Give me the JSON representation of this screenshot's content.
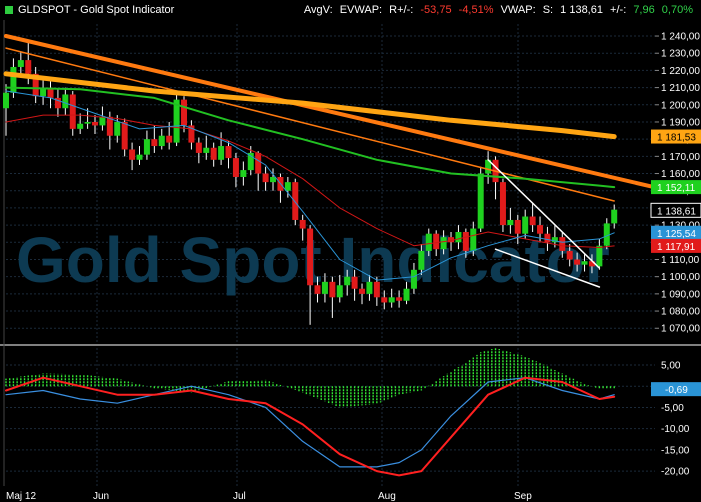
{
  "header": {
    "title": "GLDSPOT - Gold Spot Indicator",
    "avgv": "AvgV:",
    "evwap": "EVWAP:",
    "rpm_label": "R+/-:",
    "rpm_value": "-53,75",
    "rpm_pct": "-4,51%",
    "vwap": "VWAP:",
    "s_label": "S:",
    "s_value": "1 138,61",
    "pm_label": "+/-:",
    "pm_value": "7,96",
    "pm_pct": "0,70%"
  },
  "watermark": "Gold Spot Indicator",
  "colors": {
    "up": "#1fd11f",
    "down": "#e11b1b",
    "ma_green": "#22c022",
    "ma_red": "#d01616",
    "ma_blue": "#2a94d6",
    "trend_orange": "#ff7a10",
    "trend_gold": "#ffa513",
    "white_line": "#ffffff",
    "macd": "#ff2020",
    "signal": "#3a8fe0",
    "hist": "#33e633"
  },
  "chart_data": [
    {
      "type": "candlestick",
      "title": "GLDSPOT - Gold Spot Indicator",
      "xlabel": "",
      "ylabel": "",
      "x_ticks": [
        "Maj 12",
        "Jun",
        "Jul",
        "Aug",
        "Sep"
      ],
      "y_ticks": [
        1070,
        1080,
        1090,
        1100,
        1110,
        1120,
        1130,
        1140,
        1150,
        1160,
        1170,
        1180,
        1190,
        1200,
        1210,
        1220,
        1230,
        1240
      ],
      "y_tick_labels": [
        "1 070,00",
        "1 080,00",
        "1 090,00",
        "1 100,00",
        "1 110,00",
        "1 120,00",
        "1 130,00",
        "1 140,00",
        "1 150,00",
        "1 160,00",
        "1 170,00",
        "1 180,00",
        "1 190,00",
        "1 200,00",
        "1 210,00",
        "1 220,00",
        "1 230,00",
        "1 240,00"
      ],
      "ylim": [
        1062,
        1247
      ],
      "grid": true,
      "value_labels": [
        {
          "text": "1 181,53",
          "value": 1181.53,
          "color": "#ffa513"
        },
        {
          "text": "1 152,11",
          "value": 1152.11,
          "color": "#1fd11f"
        },
        {
          "text": "1 138,61",
          "value": 1138.61,
          "color": "#ffffff"
        },
        {
          "text": "1 125,54",
          "value": 1125.54,
          "color": "#2a94d6"
        },
        {
          "text": "1 117,91",
          "value": 1117.91,
          "color": "#e11b1b"
        }
      ],
      "candles": [
        {
          "d": 0,
          "o": 1198,
          "c": 1207,
          "h": 1212,
          "l": 1182
        },
        {
          "d": 2,
          "o": 1207,
          "c": 1222,
          "h": 1227,
          "l": 1204
        },
        {
          "d": 4,
          "o": 1222,
          "c": 1226,
          "h": 1231,
          "l": 1216
        },
        {
          "d": 6,
          "o": 1226,
          "c": 1218,
          "h": 1237,
          "l": 1212
        },
        {
          "d": 8,
          "o": 1218,
          "c": 1205,
          "h": 1222,
          "l": 1201
        },
        {
          "d": 10,
          "o": 1205,
          "c": 1210,
          "h": 1216,
          "l": 1200
        },
        {
          "d": 12,
          "o": 1210,
          "c": 1204,
          "h": 1214,
          "l": 1198
        },
        {
          "d": 14,
          "o": 1204,
          "c": 1198,
          "h": 1209,
          "l": 1193
        },
        {
          "d": 16,
          "o": 1198,
          "c": 1206,
          "h": 1210,
          "l": 1194
        },
        {
          "d": 18,
          "o": 1206,
          "c": 1186,
          "h": 1208,
          "l": 1182
        },
        {
          "d": 20,
          "o": 1186,
          "c": 1189,
          "h": 1195,
          "l": 1183
        },
        {
          "d": 22,
          "o": 1189,
          "c": 1190,
          "h": 1198,
          "l": 1186
        },
        {
          "d": 24,
          "o": 1190,
          "c": 1188,
          "h": 1194,
          "l": 1183
        },
        {
          "d": 26,
          "o": 1188,
          "c": 1193,
          "h": 1199,
          "l": 1185
        },
        {
          "d": 28,
          "o": 1193,
          "c": 1182,
          "h": 1196,
          "l": 1174
        },
        {
          "d": 30,
          "o": 1182,
          "c": 1190,
          "h": 1194,
          "l": 1178
        },
        {
          "d": 32,
          "o": 1190,
          "c": 1174,
          "h": 1192,
          "l": 1170
        },
        {
          "d": 34,
          "o": 1174,
          "c": 1168,
          "h": 1178,
          "l": 1162
        },
        {
          "d": 36,
          "o": 1168,
          "c": 1171,
          "h": 1176,
          "l": 1165
        },
        {
          "d": 38,
          "o": 1171,
          "c": 1180,
          "h": 1185,
          "l": 1168
        },
        {
          "d": 40,
          "o": 1180,
          "c": 1176,
          "h": 1188,
          "l": 1172
        },
        {
          "d": 42,
          "o": 1176,
          "c": 1182,
          "h": 1186,
          "l": 1174
        },
        {
          "d": 44,
          "o": 1182,
          "c": 1178,
          "h": 1190,
          "l": 1174
        },
        {
          "d": 46,
          "o": 1178,
          "c": 1203,
          "h": 1206,
          "l": 1176
        },
        {
          "d": 48,
          "o": 1203,
          "c": 1188,
          "h": 1205,
          "l": 1184
        },
        {
          "d": 50,
          "o": 1188,
          "c": 1178,
          "h": 1191,
          "l": 1174
        },
        {
          "d": 52,
          "o": 1178,
          "c": 1172,
          "h": 1181,
          "l": 1166
        },
        {
          "d": 54,
          "o": 1172,
          "c": 1175,
          "h": 1182,
          "l": 1168
        },
        {
          "d": 56,
          "o": 1175,
          "c": 1168,
          "h": 1178,
          "l": 1164
        },
        {
          "d": 58,
          "o": 1168,
          "c": 1176,
          "h": 1184,
          "l": 1165
        },
        {
          "d": 60,
          "o": 1176,
          "c": 1169,
          "h": 1179,
          "l": 1163
        },
        {
          "d": 62,
          "o": 1169,
          "c": 1158,
          "h": 1172,
          "l": 1152
        },
        {
          "d": 64,
          "o": 1158,
          "c": 1162,
          "h": 1167,
          "l": 1153
        },
        {
          "d": 66,
          "o": 1162,
          "c": 1172,
          "h": 1176,
          "l": 1159
        },
        {
          "d": 68,
          "o": 1172,
          "c": 1160,
          "h": 1173,
          "l": 1150
        },
        {
          "d": 70,
          "o": 1160,
          "c": 1155,
          "h": 1164,
          "l": 1150
        },
        {
          "d": 72,
          "o": 1155,
          "c": 1158,
          "h": 1163,
          "l": 1150
        },
        {
          "d": 74,
          "o": 1158,
          "c": 1150,
          "h": 1160,
          "l": 1143
        },
        {
          "d": 76,
          "o": 1150,
          "c": 1155,
          "h": 1158,
          "l": 1146
        },
        {
          "d": 78,
          "o": 1155,
          "c": 1133,
          "h": 1157,
          "l": 1130
        },
        {
          "d": 80,
          "o": 1133,
          "c": 1128,
          "h": 1136,
          "l": 1121
        },
        {
          "d": 82,
          "o": 1128,
          "c": 1095,
          "h": 1130,
          "l": 1072
        },
        {
          "d": 84,
          "o": 1095,
          "c": 1090,
          "h": 1100,
          "l": 1085
        },
        {
          "d": 86,
          "o": 1090,
          "c": 1097,
          "h": 1102,
          "l": 1085
        },
        {
          "d": 88,
          "o": 1097,
          "c": 1088,
          "h": 1100,
          "l": 1076
        },
        {
          "d": 90,
          "o": 1088,
          "c": 1095,
          "h": 1101,
          "l": 1085
        },
        {
          "d": 92,
          "o": 1095,
          "c": 1100,
          "h": 1104,
          "l": 1089
        },
        {
          "d": 94,
          "o": 1100,
          "c": 1093,
          "h": 1104,
          "l": 1086
        },
        {
          "d": 96,
          "o": 1093,
          "c": 1090,
          "h": 1096,
          "l": 1084
        },
        {
          "d": 98,
          "o": 1090,
          "c": 1097,
          "h": 1101,
          "l": 1086
        },
        {
          "d": 100,
          "o": 1097,
          "c": 1088,
          "h": 1100,
          "l": 1083
        },
        {
          "d": 102,
          "o": 1088,
          "c": 1085,
          "h": 1092,
          "l": 1081
        },
        {
          "d": 104,
          "o": 1085,
          "c": 1088,
          "h": 1093,
          "l": 1082
        },
        {
          "d": 106,
          "o": 1088,
          "c": 1086,
          "h": 1092,
          "l": 1082
        },
        {
          "d": 108,
          "o": 1086,
          "c": 1093,
          "h": 1097,
          "l": 1084
        },
        {
          "d": 110,
          "o": 1093,
          "c": 1104,
          "h": 1108,
          "l": 1090
        },
        {
          "d": 112,
          "o": 1104,
          "c": 1115,
          "h": 1119,
          "l": 1101
        },
        {
          "d": 114,
          "o": 1115,
          "c": 1125,
          "h": 1128,
          "l": 1112
        },
        {
          "d": 116,
          "o": 1125,
          "c": 1116,
          "h": 1127,
          "l": 1112
        },
        {
          "d": 118,
          "o": 1116,
          "c": 1123,
          "h": 1127,
          "l": 1113
        },
        {
          "d": 120,
          "o": 1123,
          "c": 1120,
          "h": 1126,
          "l": 1115
        },
        {
          "d": 122,
          "o": 1120,
          "c": 1126,
          "h": 1130,
          "l": 1116
        },
        {
          "d": 124,
          "o": 1126,
          "c": 1115,
          "h": 1128,
          "l": 1111
        },
        {
          "d": 126,
          "o": 1115,
          "c": 1128,
          "h": 1132,
          "l": 1112
        },
        {
          "d": 128,
          "o": 1128,
          "c": 1160,
          "h": 1164,
          "l": 1126
        },
        {
          "d": 130,
          "o": 1160,
          "c": 1168,
          "h": 1173,
          "l": 1154
        },
        {
          "d": 132,
          "o": 1168,
          "c": 1155,
          "h": 1170,
          "l": 1145
        },
        {
          "d": 134,
          "o": 1155,
          "c": 1130,
          "h": 1157,
          "l": 1126
        },
        {
          "d": 136,
          "o": 1130,
          "c": 1133,
          "h": 1140,
          "l": 1125
        },
        {
          "d": 138,
          "o": 1133,
          "c": 1125,
          "h": 1136,
          "l": 1119
        },
        {
          "d": 140,
          "o": 1125,
          "c": 1135,
          "h": 1139,
          "l": 1122
        },
        {
          "d": 142,
          "o": 1135,
          "c": 1130,
          "h": 1143,
          "l": 1126
        },
        {
          "d": 144,
          "o": 1130,
          "c": 1125,
          "h": 1135,
          "l": 1120
        },
        {
          "d": 146,
          "o": 1125,
          "c": 1120,
          "h": 1129,
          "l": 1115
        },
        {
          "d": 148,
          "o": 1120,
          "c": 1123,
          "h": 1130,
          "l": 1117
        },
        {
          "d": 150,
          "o": 1123,
          "c": 1115,
          "h": 1126,
          "l": 1111
        },
        {
          "d": 152,
          "o": 1115,
          "c": 1110,
          "h": 1119,
          "l": 1106
        },
        {
          "d": 154,
          "o": 1110,
          "c": 1107,
          "h": 1114,
          "l": 1103
        },
        {
          "d": 156,
          "o": 1107,
          "c": 1109,
          "h": 1113,
          "l": 1103
        },
        {
          "d": 158,
          "o": 1109,
          "c": 1106,
          "h": 1113,
          "l": 1102
        },
        {
          "d": 160,
          "o": 1106,
          "c": 1118,
          "h": 1122,
          "l": 1104
        },
        {
          "d": 162,
          "o": 1118,
          "c": 1131,
          "h": 1134,
          "l": 1116
        },
        {
          "d": 164,
          "o": 1131,
          "c": 1139,
          "h": 1142,
          "l": 1128
        }
      ],
      "ma_green": {
        "d": [
          0,
          20,
          40,
          60,
          80,
          100,
          120,
          140,
          160,
          164
        ],
        "v": [
          1210,
          1209,
          1204,
          1191,
          1180,
          1168,
          1160,
          1157,
          1153,
          1152.1
        ]
      },
      "ma_blue": {
        "d": [
          0,
          12,
          24,
          36,
          48,
          60,
          70,
          80,
          90,
          100,
          110,
          120,
          130,
          140,
          150,
          160,
          164
        ],
        "v": [
          1208,
          1204,
          1195,
          1186,
          1188,
          1178,
          1165,
          1138,
          1110,
          1098,
          1100,
          1111,
          1118,
          1124,
          1120,
          1122,
          1125.5
        ]
      },
      "ma_red": {
        "d": [
          0,
          10,
          20,
          30,
          40,
          50,
          60,
          70,
          80,
          90,
          100,
          110,
          120,
          130,
          140,
          150,
          160,
          164
        ],
        "v": [
          1190,
          1194,
          1194,
          1192,
          1188,
          1186,
          1179,
          1170,
          1157,
          1140,
          1128,
          1118,
          1121,
          1126,
          1122,
          1118,
          1117,
          1117.9
        ]
      },
      "trend_lines": [
        {
          "name": "orange_thick",
          "color": "#ff7a10",
          "width": 4,
          "d": [
            0,
            175
          ],
          "v": [
            1240,
            1152
          ]
        },
        {
          "name": "orange_thin",
          "color": "#ff7a10",
          "width": 1.5,
          "d": [
            0,
            164
          ],
          "v": [
            1233,
            1144
          ]
        },
        {
          "name": "gold_thick",
          "color": "#ffa513",
          "width": 5,
          "d": [
            0,
            40,
            80,
            120,
            150,
            164
          ],
          "v": [
            1218,
            1208,
            1201,
            1191,
            1185,
            1181.5
          ]
        },
        {
          "name": "white_upper",
          "color": "#ffffff",
          "width": 1.5,
          "d": [
            130,
            160
          ],
          "v": [
            1168,
            1105
          ]
        },
        {
          "name": "white_lower",
          "color": "#ffffff",
          "width": 1.5,
          "d": [
            132,
            160
          ],
          "v": [
            1116,
            1094
          ]
        }
      ]
    },
    {
      "type": "macd",
      "title": "",
      "y_ticks": [
        5,
        0,
        -5,
        -10,
        -15,
        -20
      ],
      "y_tick_labels": [
        "5,00",
        "",
        "-5,00",
        "-10,00",
        "-15,00",
        "-20,00"
      ],
      "ylim": [
        -23.5,
        9
      ],
      "grid": true,
      "value_labels": [
        {
          "text": "-0,69",
          "value": -0.69,
          "color": "#2a94d6"
        }
      ],
      "macd": {
        "d": [
          0,
          10,
          20,
          30,
          40,
          50,
          60,
          70,
          80,
          90,
          100,
          106,
          112,
          120,
          130,
          140,
          150,
          160,
          164
        ],
        "v": [
          -1,
          2,
          0,
          -2,
          -2,
          -1,
          -3,
          -4,
          -9,
          -16,
          -20,
          -21,
          -20,
          -12,
          -2,
          2,
          1,
          -3,
          -2.5
        ]
      },
      "signal": {
        "d": [
          0,
          10,
          20,
          30,
          40,
          50,
          60,
          70,
          80,
          90,
          100,
          106,
          112,
          120,
          130,
          140,
          150,
          160,
          164
        ],
        "v": [
          -2,
          -1,
          -3,
          -4,
          -2,
          0,
          -2,
          -5,
          -13,
          -19,
          -19,
          -18,
          -15,
          -7,
          1,
          2,
          -1,
          -3,
          -2
        ]
      },
      "histogram": {
        "d": [
          0,
          10,
          20,
          30,
          40,
          50,
          60,
          70,
          80,
          90,
          100,
          106,
          112,
          120,
          124,
          128,
          132,
          136,
          140,
          144,
          150,
          156,
          160,
          164
        ],
        "v": [
          1.8,
          3,
          2.8,
          1.8,
          -0.5,
          -1.5,
          1.2,
          1.5,
          -1.5,
          -5,
          -4.2,
          -2,
          -1,
          3.5,
          5.5,
          8,
          9,
          8,
          7,
          5.5,
          3,
          0.5,
          -0.6,
          -0.69
        ]
      }
    }
  ]
}
